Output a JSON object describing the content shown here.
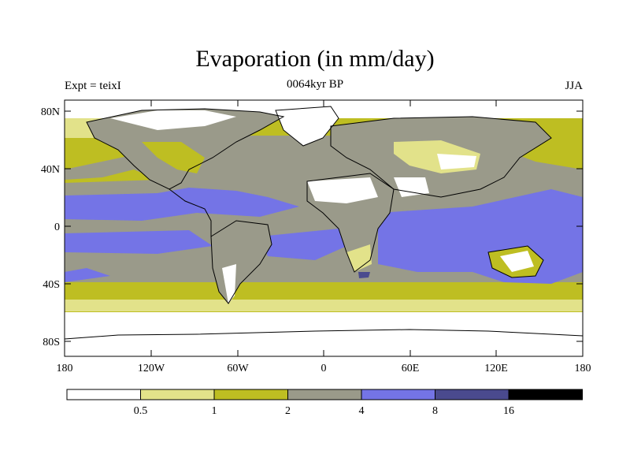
{
  "title": "Evaporation (in mm/day)",
  "header": {
    "experiment": "Expt = teixI",
    "period": "0064kyr BP",
    "season": "JJA"
  },
  "map": {
    "lat_ticks": [
      "80N",
      "40N",
      "0",
      "40S",
      "80S"
    ],
    "lon_ticks": [
      "180",
      "120W",
      "60W",
      "0",
      "60E",
      "120E",
      "180"
    ]
  },
  "colorbar": {
    "colors": [
      "#ffffff",
      "#e2e28a",
      "#bebe22",
      "#9a9a8a",
      "#7474e6",
      "#4a4a8e",
      "#000000"
    ],
    "labels": [
      "0.5",
      "1",
      "2",
      "4",
      "8",
      "16"
    ]
  }
}
